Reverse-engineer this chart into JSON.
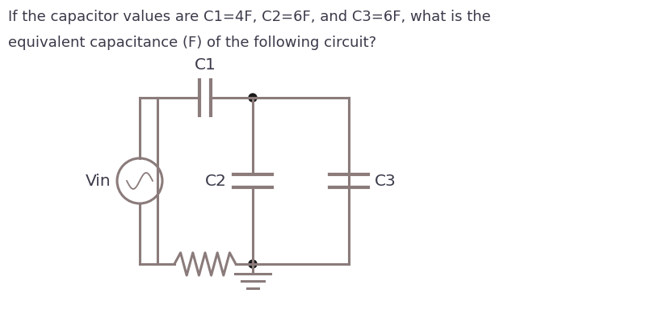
{
  "title_line1": "If the capacitor values are C1=4F, C2=6F, and C3=6F, what is the",
  "title_line2": "equivalent capacitance (F) of the following circuit?",
  "bg_color": "#ffffff",
  "circuit_color": "#8B7B7B",
  "text_color": "#3a3a4a",
  "line_width": 2.2,
  "title_fontsize": 13.0,
  "label_fontsize": 14.5
}
